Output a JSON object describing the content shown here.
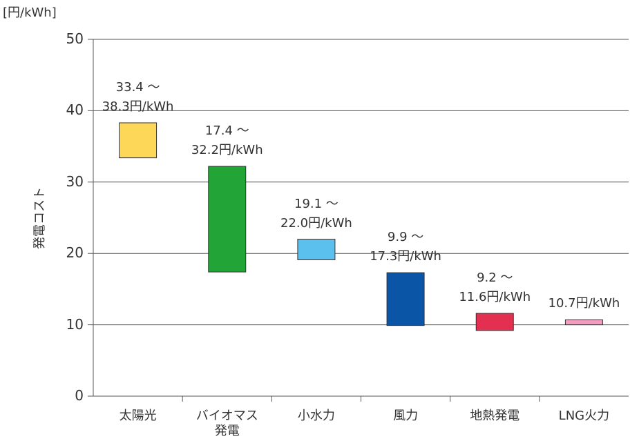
{
  "chart_data": {
    "type": "floating_bar",
    "unit_label": "[円/kWh]",
    "ylabel": "発電コスト",
    "categories": [
      "太陽光",
      "バイオマス\n発電",
      "小水力",
      "風力",
      "地熱発電",
      "LNG火力"
    ],
    "low": [
      33.4,
      17.4,
      19.1,
      9.9,
      9.2,
      10.0
    ],
    "high": [
      38.3,
      32.2,
      22.0,
      17.3,
      11.6,
      10.7
    ],
    "low_labels": [
      "33.4 ～",
      "17.4 ～",
      "19.1 ～",
      "9.9 ～",
      "9.2 ～",
      null
    ],
    "high_labels": [
      "38.3円/kWh",
      "32.2円/kWh",
      "22.0円/kWh",
      "17.3円/kWh",
      "11.6円/kWh",
      "10.7円/kWh"
    ],
    "colors": [
      "#fdd757",
      "#22a437",
      "#5bc0ee",
      "#0a55a5",
      "#e33050",
      "#f49cbf"
    ],
    "ylim": [
      0,
      50
    ],
    "yticks": [
      0,
      10,
      20,
      30,
      40,
      50
    ],
    "grid": true
  }
}
